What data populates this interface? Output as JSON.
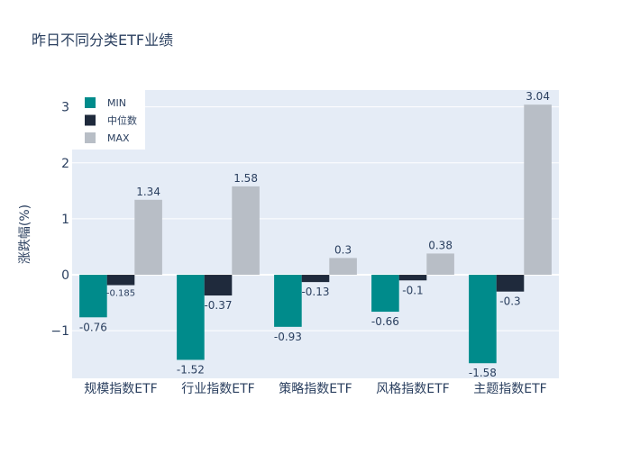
{
  "chart_data": {
    "type": "bar",
    "title": "昨日不同分类ETF业绩",
    "xlabel": "",
    "ylabel": "涨跌幅(%)",
    "ylim": [
      -1.85,
      3.3
    ],
    "yticks": [
      -1,
      0,
      1,
      2,
      3
    ],
    "ytick_labels": [
      "−1",
      "0",
      "1",
      "2",
      "3"
    ],
    "grid": true,
    "legend_position": "top-left",
    "categories": [
      "规模指数ETF",
      "行业指数ETF",
      "策略指数ETF",
      "风格指数ETF",
      "主题指数ETF"
    ],
    "series": [
      {
        "name": "MIN",
        "color": "#008b8b",
        "values": [
          -0.76,
          -1.52,
          -0.93,
          -0.66,
          -1.58
        ],
        "labels": [
          "-0.76",
          "-1.52",
          "-0.93",
          "-0.66",
          "-1.58"
        ]
      },
      {
        "name": "中位数",
        "color": "#1f2a3c",
        "values": [
          -0.185,
          -0.37,
          -0.13,
          -0.1,
          -0.3
        ],
        "labels": [
          "-0.185",
          "-0.37",
          "-0.13",
          "-0.1",
          "-0.3"
        ]
      },
      {
        "name": "MAX",
        "color": "#b8bec6",
        "values": [
          1.34,
          1.58,
          0.3,
          0.38,
          3.04
        ],
        "labels": [
          "1.34",
          "1.58",
          "0.3",
          "0.38",
          "3.04"
        ]
      }
    ]
  }
}
